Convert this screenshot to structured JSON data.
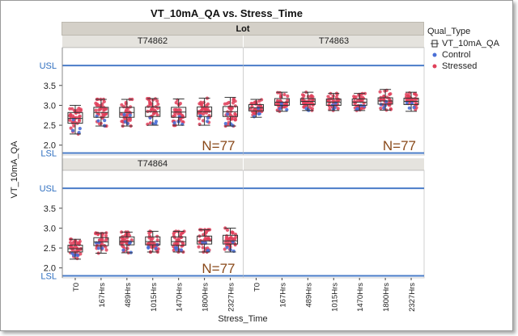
{
  "chart_title": "VT_10mA_QA vs. Stress_Time",
  "facet_header": "Lot",
  "xlabel": "Stress_Time",
  "ylabel": "VT_10mA_QA",
  "legend": {
    "title": "Qual_Type",
    "items": [
      {
        "label": "VT_10mA_QA",
        "kind": "box"
      },
      {
        "label": "Control",
        "kind": "point",
        "color": "#4a6fd6"
      },
      {
        "label": "Stressed",
        "kind": "point",
        "color": "#e0405a"
      }
    ]
  },
  "colors": {
    "limit_line": "#4a7cc8",
    "limit_text": "#2f6fc0",
    "stressed": "#e0405a",
    "control": "#4a6fd6",
    "n_label": "#8a4a1a",
    "box": "#333333"
  },
  "chart_data": {
    "type": "box",
    "categories": [
      "T0",
      "167Hrs",
      "489Hrs",
      "1015Hrs",
      "1470Hrs",
      "1800Hrs",
      "2327Hrs"
    ],
    "y_range": [
      1.75,
      4.45
    ],
    "y_ticks": [
      2.0,
      2.5,
      3.0,
      3.5
    ],
    "usl": 4.0,
    "lsl": 1.8,
    "limit_labels": [
      "USL",
      "LSL"
    ],
    "panels": [
      {
        "lot": "T74862",
        "n_label": "N=77",
        "stats": [
          {
            "min": 2.28,
            "q1": 2.55,
            "median": 2.67,
            "q3": 2.82,
            "max": 3.0
          },
          {
            "min": 2.48,
            "q1": 2.7,
            "median": 2.82,
            "q3": 2.95,
            "max": 3.15
          },
          {
            "min": 2.48,
            "q1": 2.7,
            "median": 2.82,
            "q3": 2.95,
            "max": 3.15
          },
          {
            "min": 2.5,
            "q1": 2.72,
            "median": 2.84,
            "q3": 2.96,
            "max": 3.17
          },
          {
            "min": 2.5,
            "q1": 2.7,
            "median": 2.83,
            "q3": 2.95,
            "max": 3.16
          },
          {
            "min": 2.5,
            "q1": 2.72,
            "median": 2.84,
            "q3": 2.96,
            "max": 3.18
          },
          {
            "min": 2.48,
            "q1": 2.72,
            "median": 2.84,
            "q3": 2.97,
            "max": 3.2
          }
        ]
      },
      {
        "lot": "T74863",
        "n_label": "N=77",
        "stats": [
          {
            "min": 2.7,
            "q1": 2.86,
            "median": 2.94,
            "q3": 3.02,
            "max": 3.15
          },
          {
            "min": 2.85,
            "q1": 3.0,
            "median": 3.08,
            "q3": 3.17,
            "max": 3.33
          },
          {
            "min": 2.87,
            "q1": 3.02,
            "median": 3.1,
            "q3": 3.17,
            "max": 3.33
          },
          {
            "min": 2.87,
            "q1": 3.0,
            "median": 3.08,
            "q3": 3.16,
            "max": 3.3
          },
          {
            "min": 2.87,
            "q1": 3.0,
            "median": 3.08,
            "q3": 3.16,
            "max": 3.3
          },
          {
            "min": 2.88,
            "q1": 3.03,
            "median": 3.11,
            "q3": 3.19,
            "max": 3.4
          },
          {
            "min": 2.85,
            "q1": 3.02,
            "median": 3.1,
            "q3": 3.18,
            "max": 3.33
          }
        ]
      },
      {
        "lot": "T74864",
        "n_label": "N=77",
        "stats": [
          {
            "min": 2.22,
            "q1": 2.4,
            "median": 2.48,
            "q3": 2.57,
            "max": 2.72
          },
          {
            "min": 2.37,
            "q1": 2.56,
            "median": 2.65,
            "q3": 2.76,
            "max": 2.88
          },
          {
            "min": 2.38,
            "q1": 2.58,
            "median": 2.66,
            "q3": 2.78,
            "max": 2.9
          },
          {
            "min": 2.4,
            "q1": 2.58,
            "median": 2.66,
            "q3": 2.78,
            "max": 2.92
          },
          {
            "min": 2.4,
            "q1": 2.57,
            "median": 2.66,
            "q3": 2.78,
            "max": 2.92
          },
          {
            "min": 2.4,
            "q1": 2.6,
            "median": 2.68,
            "q3": 2.8,
            "max": 2.96
          },
          {
            "min": 2.4,
            "q1": 2.6,
            "median": 2.68,
            "q3": 2.82,
            "max": 3.0
          }
        ]
      },
      {
        "lot": "",
        "n_label": "",
        "stats": []
      }
    ]
  }
}
